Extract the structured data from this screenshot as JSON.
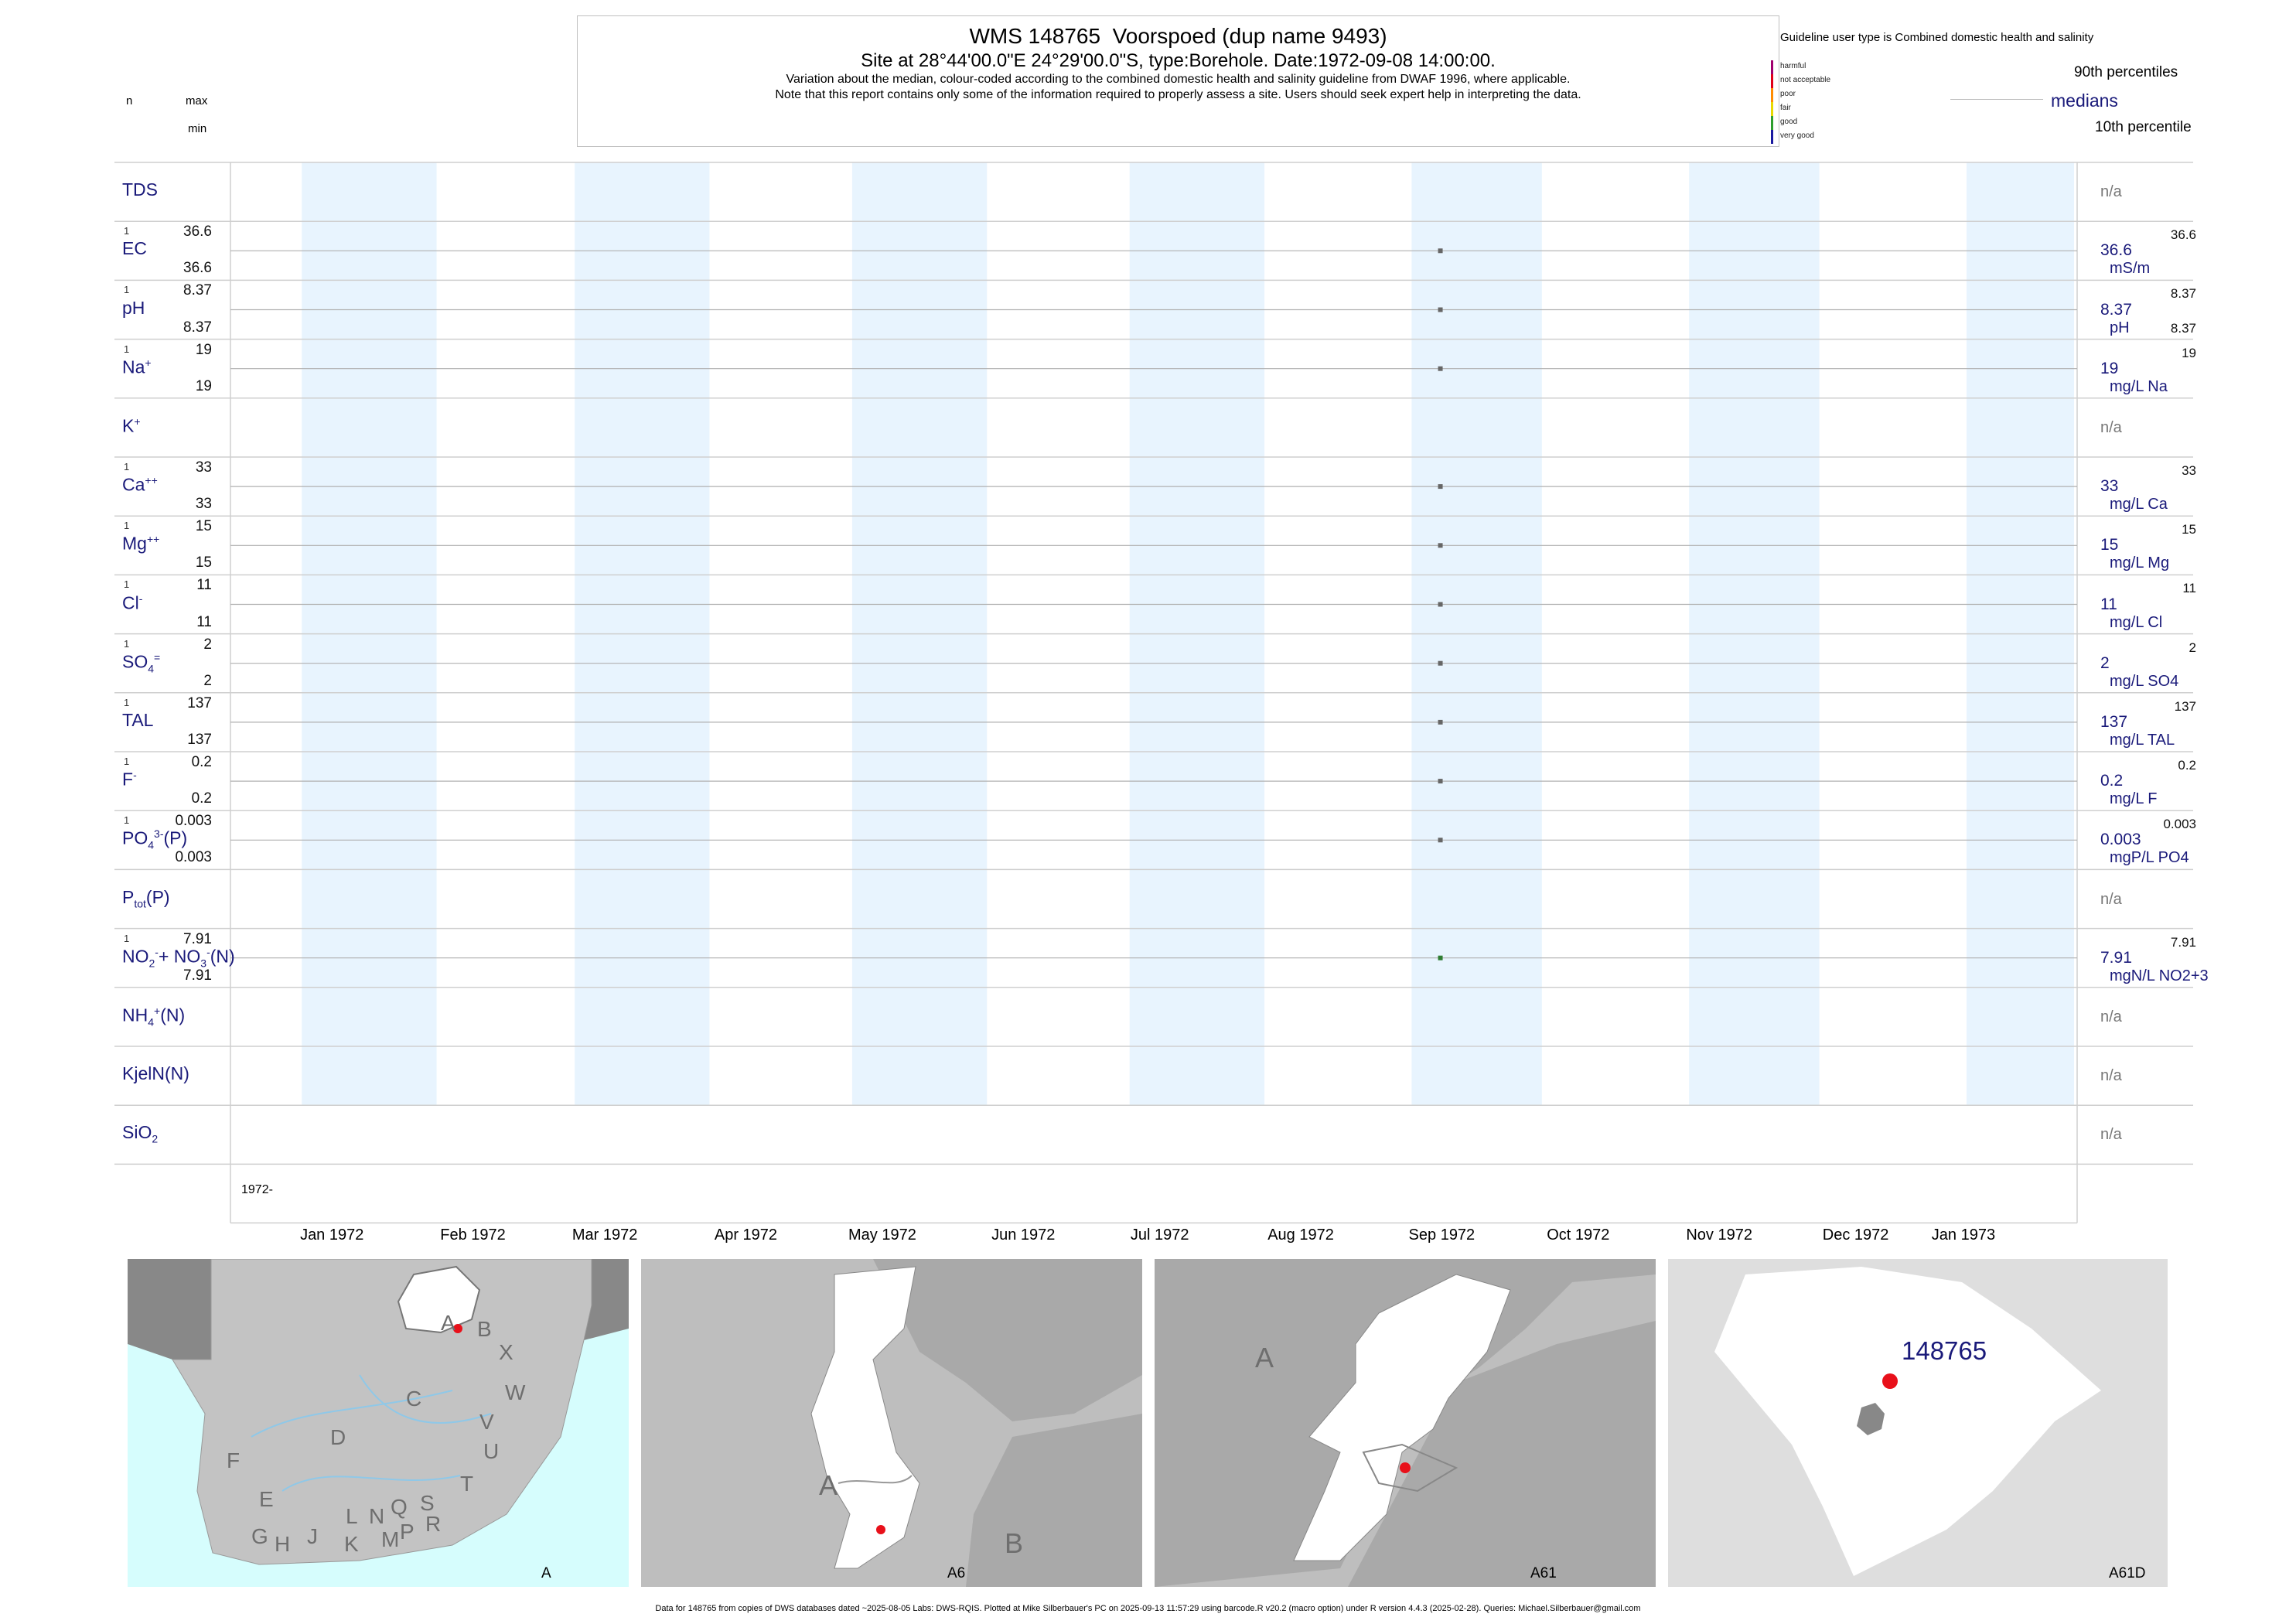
{
  "header": {
    "title": "WMS 148765  Voorspoed (dup name 9493)",
    "subtitle": "Site at 28°44'00.0\"E 24°29'00.0\"S, type:Borehole. Date:1972-09-08 14:00:00.",
    "note1": "Variation about the median,  colour-coded according to the combined domestic health and salinity guideline from DWAF 1996, where applicable.",
    "note2": "Note that this report contains only some of the information required to properly assess a site. Users should seek expert help in interpreting the data."
  },
  "left_key": {
    "n": "n",
    "max": "max",
    "min": "min"
  },
  "legend": {
    "guideline_text": "Guideline user type is Combined domestic health and salinity",
    "categories": [
      {
        "label": "harmful",
        "color": "#a0006e"
      },
      {
        "label": "not acceptable",
        "color": "#e0001a"
      },
      {
        "label": "poor",
        "color": "#ff8c00"
      },
      {
        "label": "fair",
        "color": "#e8d800"
      },
      {
        "label": "good",
        "color": "#2e9e2e"
      },
      {
        "label": "very good",
        "color": "#1a1aa0"
      }
    ],
    "p90": "90th percentiles",
    "medians": "medians",
    "p10": "10th percentile"
  },
  "chart_data": {
    "type": "scatter",
    "title": "WMS 148765  Voorspoed (dup name 9493)",
    "x_axis": {
      "start_label": "1972-",
      "ticks": [
        "Jan 1972",
        "Feb 1972",
        "Mar 1972",
        "Apr 1972",
        "May 1972",
        "Jun 1972",
        "Jul 1972",
        "Aug 1972",
        "Sep 1972",
        "Oct 1972",
        "Nov 1972",
        "Dec 1972",
        "Jan 1973"
      ],
      "range": [
        "1971-12-17",
        "1973-01-26"
      ]
    },
    "sample_date": "1972-09-08",
    "grid": true,
    "series": [
      {
        "label_html": "TDS",
        "na": "n/a"
      },
      {
        "label_html": "EC",
        "n": "1",
        "max": "36.6",
        "min": "36.6",
        "median": "36.6",
        "unit": "mS/m",
        "color": "#1a1aa0"
      },
      {
        "label_html": "pH",
        "n": "1",
        "max": "8.37",
        "min": "8.37",
        "median": "8.37",
        "unit": "pH",
        "color": "#1a1aa0"
      },
      {
        "label_html": "Na<sup>+</sup>",
        "n": "1",
        "max": "19",
        "min": "19",
        "median": "19",
        "unit": "mg/L Na",
        "color": "#1a1aa0"
      },
      {
        "label_html": "K<sup>+</sup>",
        "na": "n/a"
      },
      {
        "label_html": "Ca<sup>++</sup>",
        "n": "1",
        "max": "33",
        "min": "33",
        "median": "33",
        "unit": "mg/L Ca",
        "color": "#1a1aa0"
      },
      {
        "label_html": "Mg<sup>++</sup>",
        "n": "1",
        "max": "15",
        "min": "15",
        "median": "15",
        "unit": "mg/L Mg",
        "color": "#1a1aa0"
      },
      {
        "label_html": "Cl<sup>-</sup>",
        "n": "1",
        "max": "11",
        "min": "11",
        "median": "11",
        "unit": "mg/L Cl",
        "color": "#1a1aa0"
      },
      {
        "label_html": "SO<sub>4</sub><sup>=</sup>",
        "n": "1",
        "max": "2",
        "min": "2",
        "median": "2",
        "unit": "mg/L SO4",
        "color": "#1a1aa0"
      },
      {
        "label_html": "TAL",
        "n": "1",
        "max": "137",
        "min": "137",
        "median": "137",
        "unit": "mg/L TAL",
        "color": "#1a1aa0"
      },
      {
        "label_html": "F<sup>-</sup>",
        "n": "1",
        "max": "0.2",
        "min": "0.2",
        "median": "0.2",
        "unit": "mg/L F",
        "color": "#1a1aa0"
      },
      {
        "label_html": "PO<sub>4</sub><sup>3-</sup>(P)",
        "n": "1",
        "max": "0.003",
        "min": "0.003",
        "median": "0.003",
        "unit": "mgP/L PO4",
        "color": "#1a1aa0"
      },
      {
        "label_html": "P<sub>tot</sub>(P)",
        "na": "n/a"
      },
      {
        "label_html": "NO<sub>2</sub><sup>-</sup>+ NO<sub>3</sub><sup>-</sup>(N)",
        "n": "1",
        "max": "7.91",
        "min": "7.91",
        "median": "7.91",
        "unit": "mgN/L NO2+3",
        "color": "#2e9e2e"
      },
      {
        "label_html": "NH<sub>4</sub><sup>+</sup>(N)",
        "na": "n/a"
      },
      {
        "label_html": "KjelN(N)",
        "na": "n/a"
      },
      {
        "label_html": "SiO<sub>2</sub>",
        "na": "n/a"
      }
    ]
  },
  "maps": [
    {
      "corner_label": "A",
      "regions": [
        "A",
        "B",
        "X",
        "C",
        "W",
        "D",
        "V",
        "U",
        "F",
        "T",
        "E",
        "S",
        "Q",
        "R",
        "L",
        "N",
        "G",
        "H",
        "J",
        "K",
        "M",
        "P"
      ]
    },
    {
      "corner_label": "A6",
      "regions": [
        "A",
        "B"
      ]
    },
    {
      "corner_label": "A61",
      "regions": [
        "A"
      ]
    },
    {
      "corner_label": "A61D",
      "site_label": "148765"
    }
  ],
  "footer": "Data for 148765 from copies of DWS databases dated ~2025-08-05 Labs: DWS-RQIS. Plotted at Mike Silberbauer's PC on 2025-09-13 11:57:29 using barcode.R v20.2 (macro option) under R version 4.4.3 (2025-02-28). Queries: Michael.Silberbauer@gmail.com"
}
